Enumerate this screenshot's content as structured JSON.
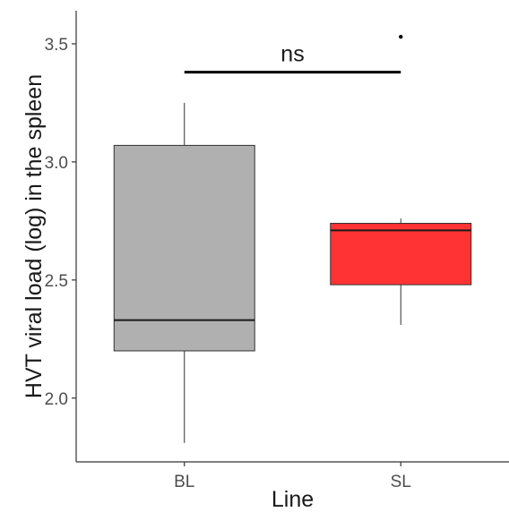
{
  "chart_data": {
    "type": "box",
    "xlabel": "Line",
    "ylabel": "HVT viral load (log) in the spleen",
    "ylim": [
      1.73,
      3.64
    ],
    "yticks": [
      2.0,
      2.5,
      3.0,
      3.5
    ],
    "ytick_labels": [
      "2.0",
      "2.5",
      "3.0",
      "3.5"
    ],
    "categories": [
      "BL",
      "SL"
    ],
    "boxes": [
      {
        "category": "BL",
        "whisker_low": 1.81,
        "q1": 2.2,
        "median": 2.33,
        "q3": 3.07,
        "whisker_high": 3.25,
        "outliers": [],
        "fill": "#b0b0b0"
      },
      {
        "category": "SL",
        "whisker_low": 2.31,
        "q1": 2.48,
        "median": 2.71,
        "q3": 2.74,
        "whisker_high": 2.76,
        "outliers": [
          3.53
        ],
        "fill": "#ff3333"
      }
    ],
    "annotation": {
      "text": "ns",
      "from": "BL",
      "to": "SL",
      "y": 3.38
    },
    "grid": false,
    "legend": "none"
  }
}
